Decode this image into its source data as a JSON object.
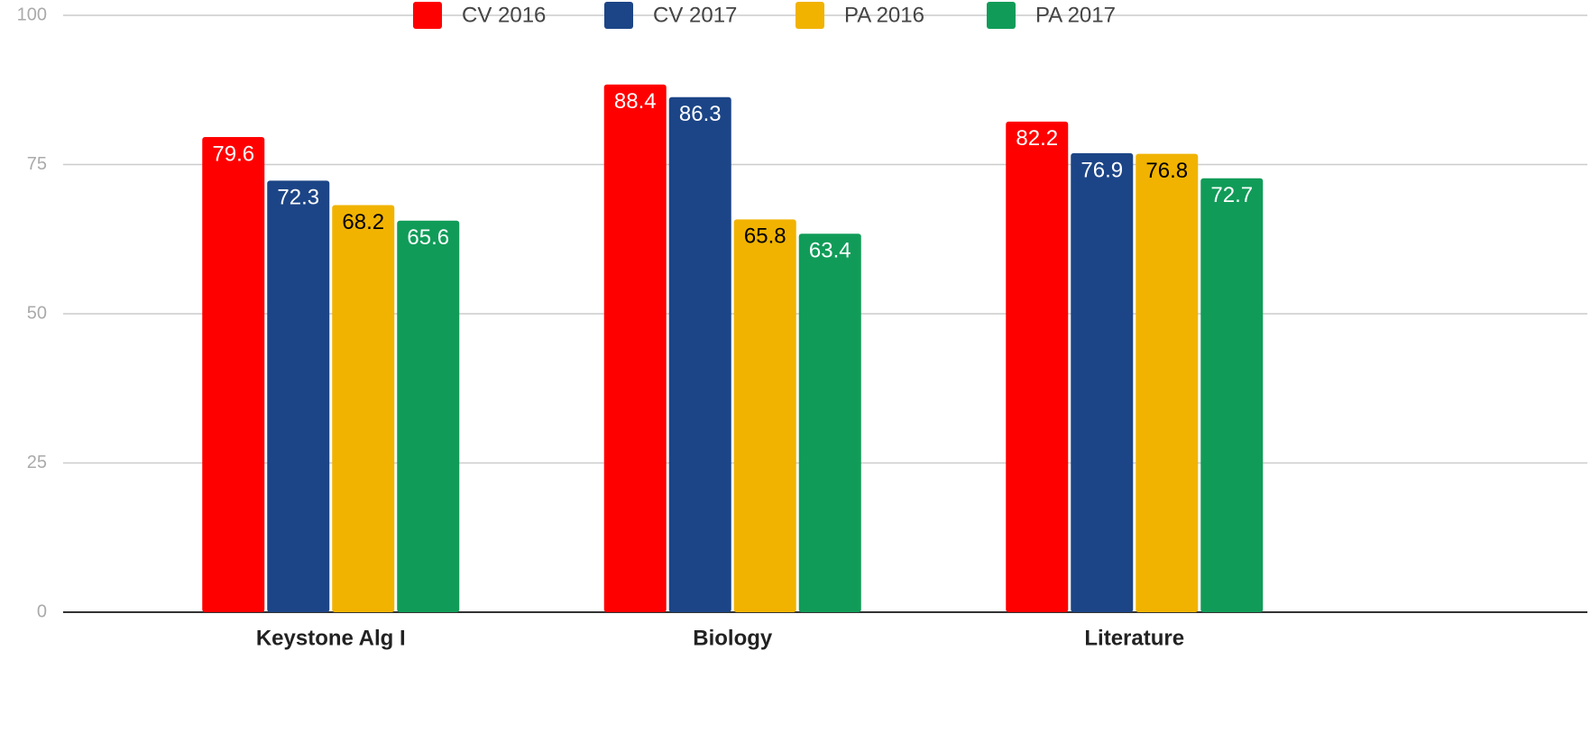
{
  "chart_data": {
    "type": "bar",
    "categories": [
      "Keystone Alg I",
      "Biology",
      "Literature"
    ],
    "series": [
      {
        "name": "CV 2016",
        "color": "#ff0000",
        "label_color": "#ffffff",
        "values": [
          79.6,
          88.4,
          82.2
        ]
      },
      {
        "name": "CV 2017",
        "color": "#1c4587",
        "label_color": "#ffffff",
        "values": [
          72.3,
          86.3,
          76.9
        ]
      },
      {
        "name": "PA 2016",
        "color": "#f1b300",
        "label_color": "#000000",
        "values": [
          68.2,
          65.8,
          76.8
        ]
      },
      {
        "name": "PA 2017",
        "color": "#109c58",
        "label_color": "#ffffff",
        "values": [
          65.6,
          63.4,
          72.7
        ]
      }
    ],
    "ylim": [
      0,
      100
    ],
    "yticks": [
      0,
      25,
      50,
      75,
      100
    ],
    "grid": true,
    "legend": "top"
  }
}
